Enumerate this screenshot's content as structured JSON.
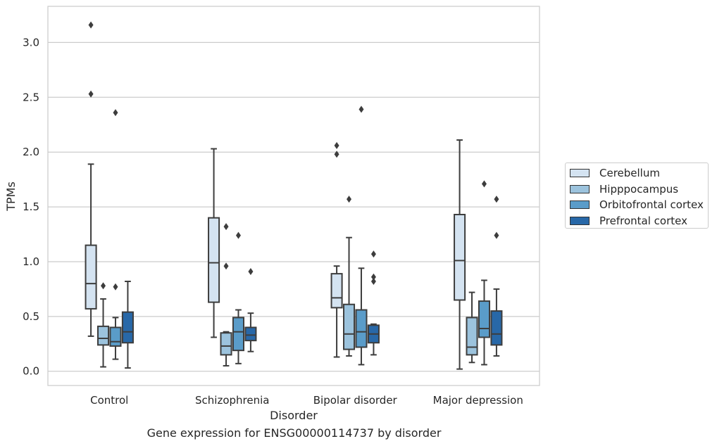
{
  "chart_data": {
    "type": "boxplot",
    "title": "",
    "caption": "Gene expression for ENSG00000114737 by disorder",
    "xlabel": "Disorder",
    "ylabel": "TPMs",
    "ylim": [
      -0.13,
      3.33
    ],
    "yticks": [
      "0.0",
      "0.5",
      "1.0",
      "1.5",
      "2.0",
      "2.5",
      "3.0"
    ],
    "categories": [
      "Control",
      "Schizophrenia",
      "Bipolar disorder",
      "Major depression"
    ],
    "grid": "horizontal",
    "legend_position": "right",
    "series": [
      {
        "name": "Cerebellum",
        "color": "#d4e3f1",
        "boxes": [
          {
            "whisker_low": 0.32,
            "q1": 0.57,
            "median": 0.8,
            "q3": 1.15,
            "whisker_high": 1.89,
            "outliers": [
              2.53,
              3.16
            ]
          },
          {
            "whisker_low": 0.31,
            "q1": 0.63,
            "median": 0.99,
            "q3": 1.4,
            "whisker_high": 2.03,
            "outliers": []
          },
          {
            "whisker_low": 0.13,
            "q1": 0.58,
            "median": 0.67,
            "q3": 0.89,
            "whisker_high": 0.96,
            "outliers": [
              1.98,
              2.06
            ]
          },
          {
            "whisker_low": 0.02,
            "q1": 0.65,
            "median": 1.01,
            "q3": 1.43,
            "whisker_high": 2.11,
            "outliers": []
          }
        ]
      },
      {
        "name": "Hipppocampus",
        "color": "#9cc3dd",
        "boxes": [
          {
            "whisker_low": 0.04,
            "q1": 0.24,
            "median": 0.3,
            "q3": 0.41,
            "whisker_high": 0.66,
            "outliers": [
              0.78
            ]
          },
          {
            "whisker_low": 0.05,
            "q1": 0.15,
            "median": 0.23,
            "q3": 0.35,
            "whisker_high": 0.36,
            "outliers": [
              0.96,
              1.32
            ]
          },
          {
            "whisker_low": 0.14,
            "q1": 0.2,
            "median": 0.34,
            "q3": 0.61,
            "whisker_high": 1.22,
            "outliers": [
              1.57
            ]
          },
          {
            "whisker_low": 0.08,
            "q1": 0.15,
            "median": 0.22,
            "q3": 0.49,
            "whisker_high": 0.72,
            "outliers": []
          }
        ]
      },
      {
        "name": "Orbitofrontal cortex",
        "color": "#5a9cc9",
        "boxes": [
          {
            "whisker_low": 0.11,
            "q1": 0.23,
            "median": 0.27,
            "q3": 0.4,
            "whisker_high": 0.49,
            "outliers": [
              0.77,
              2.36
            ]
          },
          {
            "whisker_low": 0.07,
            "q1": 0.19,
            "median": 0.36,
            "q3": 0.49,
            "whisker_high": 0.56,
            "outliers": [
              1.24
            ]
          },
          {
            "whisker_low": 0.06,
            "q1": 0.22,
            "median": 0.36,
            "q3": 0.56,
            "whisker_high": 0.94,
            "outliers": [
              2.39
            ]
          },
          {
            "whisker_low": 0.06,
            "q1": 0.31,
            "median": 0.39,
            "q3": 0.64,
            "whisker_high": 0.83,
            "outliers": [
              1.71
            ]
          }
        ]
      },
      {
        "name": "Prefrontal cortex",
        "color": "#2868a8",
        "boxes": [
          {
            "whisker_low": 0.03,
            "q1": 0.26,
            "median": 0.36,
            "q3": 0.54,
            "whisker_high": 0.82,
            "outliers": []
          },
          {
            "whisker_low": 0.18,
            "q1": 0.28,
            "median": 0.33,
            "q3": 0.4,
            "whisker_high": 0.53,
            "outliers": [
              0.91
            ]
          },
          {
            "whisker_low": 0.15,
            "q1": 0.26,
            "median": 0.34,
            "q3": 0.42,
            "whisker_high": 0.43,
            "outliers": [
              0.82,
              0.86,
              1.07
            ]
          },
          {
            "whisker_low": 0.14,
            "q1": 0.24,
            "median": 0.34,
            "q3": 0.55,
            "whisker_high": 0.75,
            "outliers": [
              1.24,
              1.57
            ]
          }
        ]
      }
    ]
  }
}
